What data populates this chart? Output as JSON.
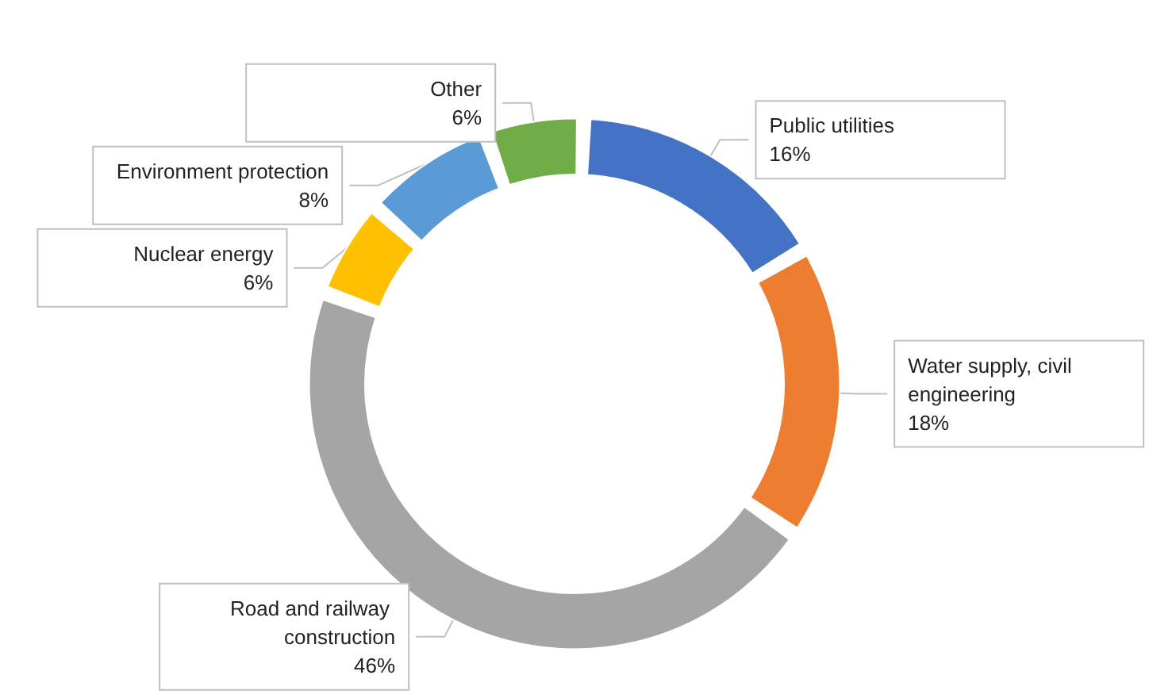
{
  "chart_data": {
    "type": "donut",
    "categories": [
      "Public utilities",
      "Water supply, civil engineering",
      "Road and railway construction",
      "Nuclear energy",
      "Environment protection",
      "Other"
    ],
    "values": [
      16,
      18,
      46,
      6,
      8,
      6
    ],
    "value_labels": [
      "16%",
      "18%",
      "46%",
      "6%",
      "8%",
      "6%"
    ],
    "colors": [
      "#4472c4",
      "#ed7d31",
      "#a5a5a5",
      "#ffc000",
      "#5b9bd5",
      "#70ad47"
    ],
    "legend": false
  }
}
